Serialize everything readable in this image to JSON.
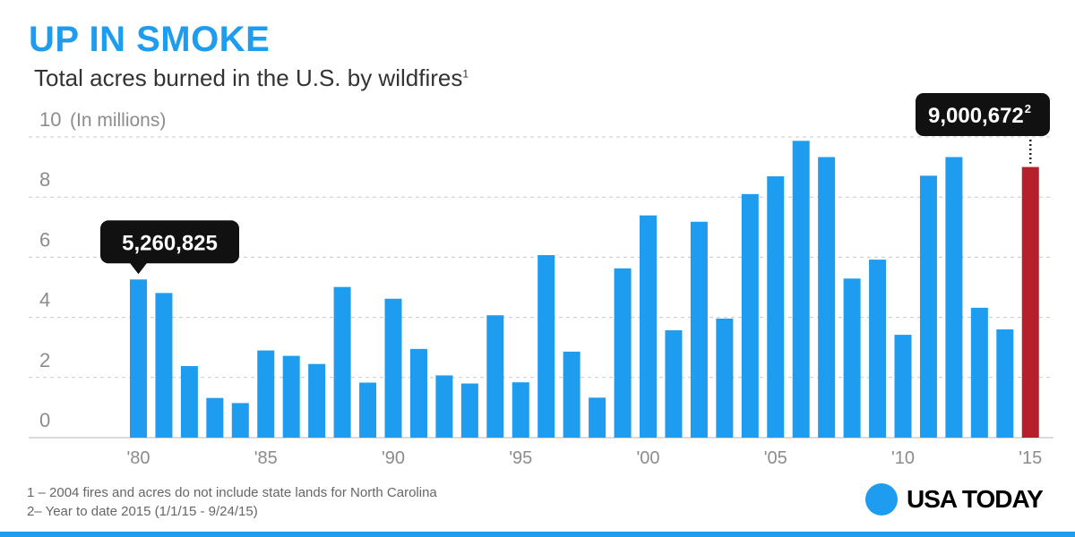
{
  "chart_data": {
    "type": "bar",
    "title": "UP IN SMOKE",
    "subtitle": "Total acres burned in the U.S. by wildfires",
    "subtitle_note": "1",
    "ylabel": "(In millions)",
    "ylim": [
      0,
      10
    ],
    "yticks": [
      {
        "value": 0,
        "label": "0"
      },
      {
        "value": 2,
        "label": "2"
      },
      {
        "value": 4,
        "label": "4"
      },
      {
        "value": 6,
        "label": "6"
      },
      {
        "value": 8,
        "label": "8"
      },
      {
        "value": 10,
        "label": "10"
      }
    ],
    "grid": true,
    "x": [
      1980,
      1981,
      1982,
      1983,
      1984,
      1985,
      1986,
      1987,
      1988,
      1989,
      1990,
      1991,
      1992,
      1993,
      1994,
      1995,
      1996,
      1997,
      1998,
      1999,
      2000,
      2001,
      2002,
      2003,
      2004,
      2005,
      2006,
      2007,
      2008,
      2009,
      2010,
      2011,
      2012,
      2013,
      2014,
      2015
    ],
    "values": [
      5.26,
      4.81,
      2.38,
      1.32,
      1.15,
      2.9,
      2.72,
      2.45,
      5.01,
      1.83,
      4.62,
      2.95,
      2.07,
      1.8,
      4.07,
      1.84,
      6.07,
      2.86,
      1.33,
      5.63,
      7.39,
      3.57,
      7.18,
      3.96,
      8.1,
      8.69,
      9.87,
      9.33,
      5.29,
      5.92,
      3.42,
      8.71,
      9.33,
      4.32,
      3.6,
      9.0
    ],
    "xtick_labels": [
      {
        "year": 1980,
        "label": "'80"
      },
      {
        "year": 1985,
        "label": "'85"
      },
      {
        "year": 1990,
        "label": "'90"
      },
      {
        "year": 1995,
        "label": "'95"
      },
      {
        "year": 2000,
        "label": "'00"
      },
      {
        "year": 2005,
        "label": "'05"
      },
      {
        "year": 2010,
        "label": "'10"
      },
      {
        "year": 2015,
        "label": "'15"
      }
    ],
    "highlight_year": 2015,
    "annotations": [
      {
        "year": 1980,
        "text": "5,260,825",
        "note": "",
        "style": "below-pointer"
      },
      {
        "year": 2015,
        "text": "9,000,672",
        "note": "2",
        "style": "dotted-leader"
      }
    ],
    "colors": {
      "bar": "#1e9cf0",
      "highlight": "#b5202a",
      "label_bg": "#111111"
    }
  },
  "footnotes": [
    "1 – 2004 fires and acres do not include state lands for North Carolina",
    "2– Year to date 2015 (1/1/15 - 9/24/15)"
  ],
  "brand": "USA TODAY"
}
